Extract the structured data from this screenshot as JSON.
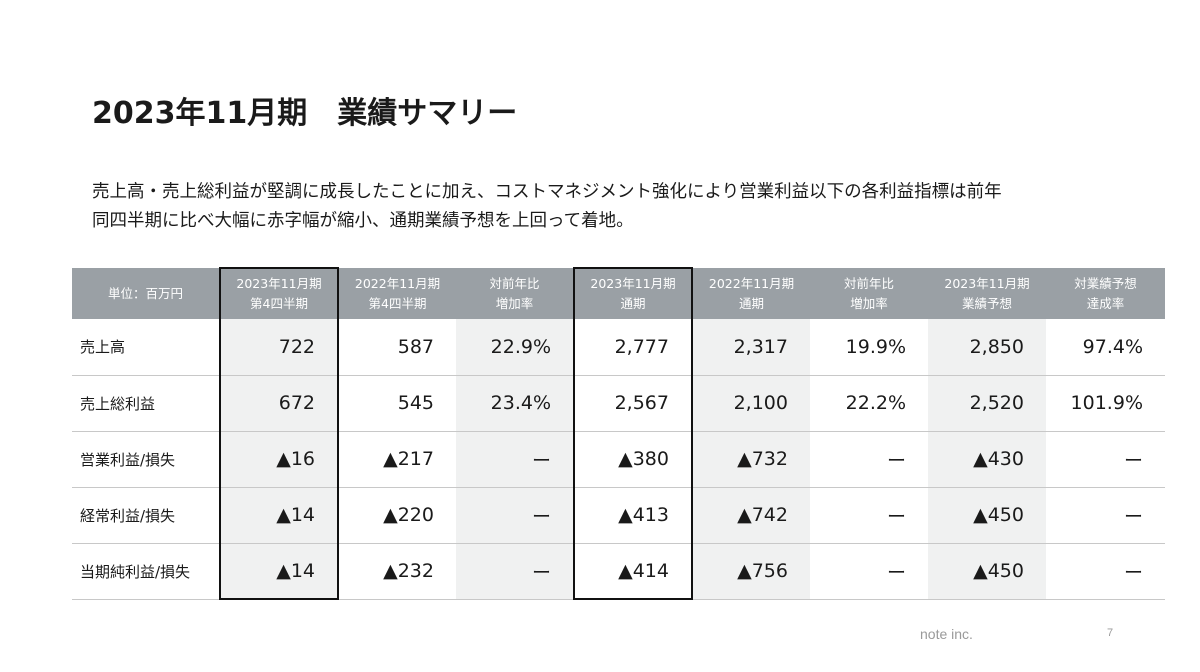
{
  "title": "2023年11月期　業績サマリー",
  "lead": {
    "line1": "売上高・売上総利益が堅調に成長したことに加え、コストマネジメント強化により営業利益以下の各利益指標は前年",
    "line2": "同四半期に比べ大幅に赤字幅が縮小、通期業績予想を上回って着地。"
  },
  "table": {
    "corner": "単位：百万円",
    "headers": [
      {
        "l1": "2023年11月期",
        "l2": "第4四半期"
      },
      {
        "l1": "2022年11月期",
        "l2": "第4四半期"
      },
      {
        "l1": "対前年比",
        "l2": "増加率"
      },
      {
        "l1": "2023年11月期",
        "l2": "通期"
      },
      {
        "l1": "2022年11月期",
        "l2": "通期"
      },
      {
        "l1": "対前年比",
        "l2": "増加率"
      },
      {
        "l1": "2023年11月期",
        "l2": "業績予想"
      },
      {
        "l1": "対業績予想",
        "l2": "達成率"
      }
    ],
    "rows": [
      {
        "label": "売上高",
        "cells": [
          "722",
          "587",
          "22.9%",
          "2,777",
          "2,317",
          "19.9%",
          "2,850",
          "97.4%"
        ]
      },
      {
        "label": "売上総利益",
        "cells": [
          "672",
          "545",
          "23.4%",
          "2,567",
          "2,100",
          "22.2%",
          "2,520",
          "101.9%"
        ]
      },
      {
        "label": "営業利益/損失",
        "cells": [
          "▲16",
          "▲217",
          "ー",
          "▲380",
          "▲732",
          "ー",
          "▲430",
          "ー"
        ]
      },
      {
        "label": "経常利益/損失",
        "cells": [
          "▲14",
          "▲220",
          "ー",
          "▲413",
          "▲742",
          "ー",
          "▲450",
          "ー"
        ]
      },
      {
        "label": "当期純利益/損失",
        "cells": [
          "▲14",
          "▲232",
          "ー",
          "▲414",
          "▲756",
          "ー",
          "▲450",
          "ー"
        ]
      }
    ]
  },
  "footer": {
    "brand": "note inc.",
    "page": "7"
  },
  "colors": {
    "header_bg": "#9aa0a5",
    "shaded_cell": "#f0f1f1",
    "outline": "#111111"
  }
}
